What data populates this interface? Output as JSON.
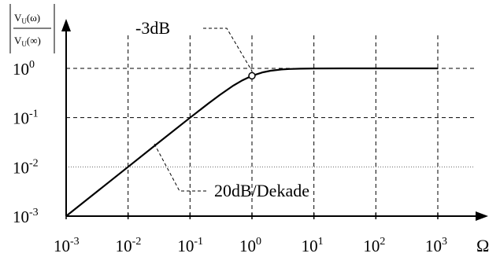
{
  "chart_data": {
    "type": "line",
    "x_scale": "log",
    "y_scale": "log",
    "xlim": [
      0.001,
      1000
    ],
    "ylim": [
      0.001,
      1
    ],
    "x_ticks": [
      0.001,
      0.01,
      0.1,
      1,
      10,
      100,
      1000
    ],
    "y_ticks": [
      0.001,
      0.01,
      0.1,
      1
    ],
    "x_tick_labels": [
      {
        "base": "10",
        "exp": "-3"
      },
      {
        "base": "10",
        "exp": "-2"
      },
      {
        "base": "10",
        "exp": "-1"
      },
      {
        "base": "10",
        "exp": "0"
      },
      {
        "base": "10",
        "exp": "1"
      },
      {
        "base": "10",
        "exp": "2"
      },
      {
        "base": "10",
        "exp": "3"
      }
    ],
    "y_tick_labels": [
      {
        "base": "10",
        "exp": "0"
      },
      {
        "base": "10",
        "exp": "-1"
      },
      {
        "base": "10",
        "exp": "-2"
      },
      {
        "base": "10",
        "exp": "-3"
      }
    ],
    "xlabel": "Ω",
    "ylabel": {
      "numerator": {
        "base": "V",
        "sub": "U",
        "arg": "(ω)"
      },
      "denominator": {
        "base": "V",
        "sub": "U",
        "arg": "(∞)"
      }
    },
    "grid": true,
    "series": [
      {
        "color": "#000000",
        "x": [
          0.001,
          0.003,
          0.01,
          0.03,
          0.1,
          0.2,
          0.3,
          0.5,
          0.7,
          1,
          1.5,
          2,
          3,
          4,
          6,
          10,
          30,
          100,
          300,
          1000
        ],
        "y": [
          0.001,
          0.003,
          0.01,
          0.03,
          0.0995,
          0.196,
          0.287,
          0.447,
          0.573,
          0.707,
          0.832,
          0.894,
          0.949,
          0.97,
          0.986,
          0.995,
          0.999,
          1.0,
          1.0,
          1.0
        ]
      }
    ],
    "marker": {
      "x": 1,
      "y": 0.707
    },
    "annotations": [
      {
        "text": "-3dB",
        "x": 1,
        "y": 0.707
      },
      {
        "text": "20dB/Dekade",
        "x": 0.1,
        "y": 0.1
      }
    ]
  }
}
